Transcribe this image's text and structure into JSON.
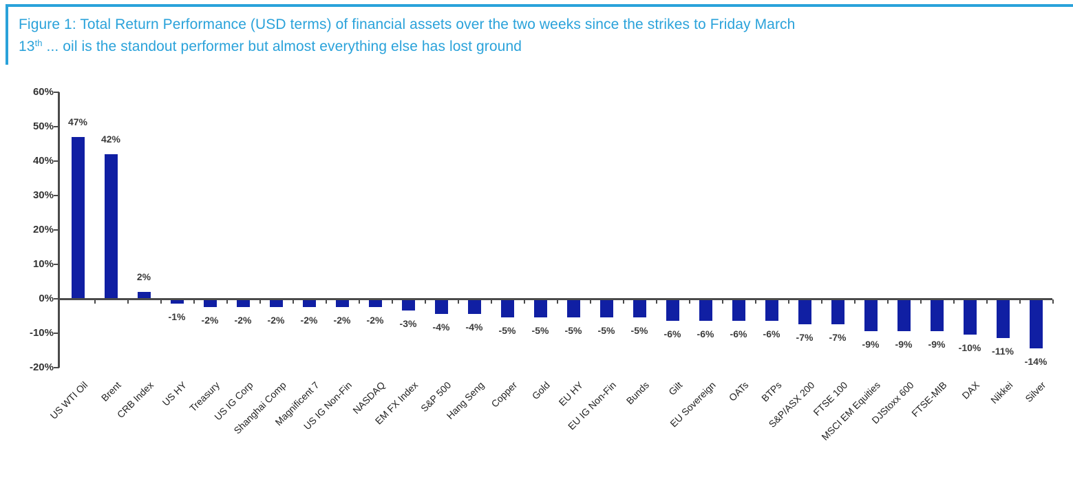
{
  "figure": {
    "title": {
      "line1": "Figure 1: Total Return Performance (USD terms) of financial assets over the two weeks since the strikes to Friday March",
      "line2_pre": "13",
      "line2_sup": "th",
      "line2_post": " ... oil is the standout performer but almost everything else has lost ground"
    },
    "accent_color": "#2aa2da"
  },
  "chart_data": {
    "type": "bar",
    "title": "Figure 1: Total Return Performance (USD terms) of financial assets over the two weeks since the strikes to Friday March 13th ... oil is the standout performer but almost everything else has lost ground",
    "categories": [
      "US WTI Oil",
      "Brent",
      "CRB Index",
      "US HY",
      "Treasury",
      "US IG Corp",
      "Shanghai Comp",
      "Magnificent 7",
      "US IG Non-Fin",
      "NASDAQ",
      "EM FX Index",
      "S&P 500",
      "Hang Seng",
      "Copper",
      "Gold",
      "EU HY",
      "EU IG Non-Fin",
      "Bunds",
      "Gilt",
      "EU Sovereign",
      "OATs",
      "BTPs",
      "S&P/ASX 200",
      "FTSE 100",
      "MSCI EM Equities",
      "DJStoxx 600",
      "FTSE-MIB",
      "DAX",
      "Nikkei",
      "Silver"
    ],
    "values": [
      47,
      42,
      2,
      -1,
      -2,
      -2,
      -2,
      -2,
      -2,
      -2,
      -3,
      -4,
      -4,
      -5,
      -5,
      -5,
      -5,
      -5,
      -6,
      -6,
      -6,
      -6,
      -7,
      -7,
      -9,
      -9,
      -9,
      -10,
      -11,
      -14
    ],
    "data_labels": [
      "47%",
      "42%",
      "2%",
      "-1%",
      "-2%",
      "-2%",
      "-2%",
      "-2%",
      "-2%",
      "-2%",
      "-3%",
      "-4%",
      "-4%",
      "-5%",
      "-5%",
      "-5%",
      "-5%",
      "-5%",
      "-6%",
      "-6%",
      "-6%",
      "-6%",
      "-7%",
      "-7%",
      "-9%",
      "-9%",
      "-9%",
      "-10%",
      "-11%",
      "-14%"
    ],
    "xlabel": "",
    "ylabel": "",
    "ylim": [
      -20,
      60
    ],
    "y_ticks": {
      "values": [
        60,
        50,
        40,
        30,
        20,
        10,
        0,
        -10,
        -20
      ],
      "labels": [
        "60%",
        "50%",
        "40%",
        "30%",
        "20%",
        "10%",
        "0%",
        "-10%",
        "-20%"
      ]
    },
    "grid": false,
    "legend": null,
    "bar_color": "#101fa3",
    "axis_color": "#4a4a4a",
    "value_label_color": "#3a3a3a",
    "category_label_color": "#1f1f1f"
  }
}
